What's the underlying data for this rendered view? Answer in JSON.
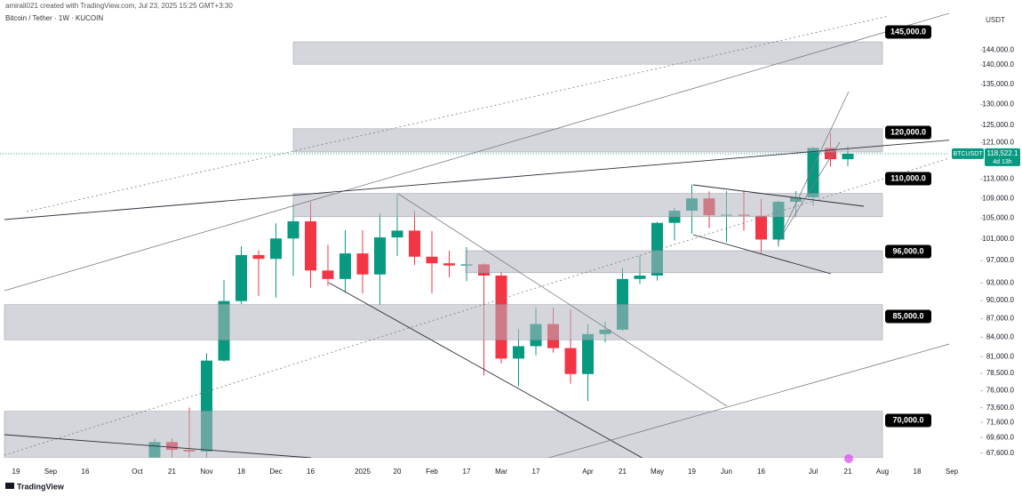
{
  "chart_data": {
    "type": "candlestick",
    "credit": "amirali021 created with TradingView.com, Jul 23, 2025 15:25 GMT+3:30",
    "title": "Bitcoin / Tether · 1W · KUCOIN",
    "currency": "USDT",
    "watermark": "TradingView",
    "log_scale": true,
    "grid": false,
    "categories": [
      "19",
      null,
      "Sep",
      null,
      "16",
      null,
      null,
      "Oct",
      null,
      "21",
      null,
      "Nov",
      null,
      "18",
      null,
      "Dec",
      null,
      "16",
      null,
      null,
      "2025",
      null,
      "20",
      null,
      "Feb",
      null,
      "17",
      null,
      "Mar",
      null,
      "17",
      null,
      null,
      "Apr",
      null,
      "21",
      null,
      "May",
      null,
      "19",
      null,
      "Jun",
      null,
      "16",
      null,
      null,
      "Jul",
      null,
      "21",
      null,
      "Aug",
      null,
      "18",
      null,
      "Sep"
    ],
    "series": [
      {
        "name": "BTCUSDT",
        "up_color": "#089981",
        "down_color": "#f23645",
        "open": [
          null,
          null,
          null,
          null,
          null,
          null,
          null,
          null,
          62850,
          69000,
          68000,
          67800,
          80400,
          89900,
          98000,
          97300,
          101100,
          104400,
          95200,
          93700,
          98300,
          94500,
          101300,
          102600,
          97700,
          96500,
          96100,
          96300,
          94300,
          80700,
          82600,
          86100,
          82300,
          78400,
          84500,
          85200,
          93700,
          94300,
          104100,
          106500,
          109000,
          105600,
          105700,
          105500,
          100900,
          108300,
          109200,
          119800,
          117300,
          null,
          null,
          null,
          null,
          null,
          null
        ],
        "high": [
          null,
          null,
          null,
          null,
          null,
          null,
          null,
          null,
          69500,
          69500,
          73600,
          81500,
          93500,
          99600,
          98900,
          104000,
          107800,
          108300,
          99900,
          102700,
          102700,
          106000,
          109800,
          106400,
          102500,
          98800,
          99500,
          96500,
          95000,
          85300,
          88800,
          88800,
          88500,
          86100,
          86500,
          95700,
          97900,
          104300,
          107100,
          111900,
          110400,
          110500,
          110600,
          108900,
          108500,
          110500,
          120000,
          123200,
          120200,
          null,
          null,
          null,
          null,
          null,
          null
        ],
        "low": [
          null,
          null,
          null,
          null,
          null,
          null,
          null,
          null,
          62400,
          65100,
          66800,
          66800,
          80200,
          89400,
          90800,
          90500,
          94200,
          92200,
          92500,
          91300,
          91200,
          89300,
          97800,
          96200,
          91200,
          94000,
          93300,
          78200,
          80000,
          76600,
          81200,
          81600,
          77000,
          74500,
          83200,
          85000,
          92800,
          93400,
          100700,
          102000,
          103100,
          100400,
          102600,
          98200,
          99600,
          105200,
          107500,
          115700,
          115800,
          null,
          null,
          null,
          null,
          null,
          null
        ],
        "close": [
          null,
          null,
          null,
          null,
          null,
          null,
          null,
          null,
          69000,
          68000,
          67800,
          80400,
          89900,
          98000,
          97300,
          101100,
          104400,
          95200,
          93700,
          98300,
          94500,
          101300,
          102600,
          97700,
          96500,
          96100,
          96300,
          94300,
          80700,
          82600,
          86100,
          82300,
          78400,
          84500,
          85200,
          93700,
          94300,
          104100,
          106500,
          109000,
          105600,
          105700,
          105500,
          100900,
          108300,
          109200,
          119800,
          117300,
          118522.1,
          null,
          null,
          null,
          null,
          null,
          null
        ],
        "last_value_label": "118,522.1",
        "countdown": "4d 13h"
      }
    ],
    "zones": [
      {
        "low": 140200,
        "high": 146200,
        "label": {
          "value": 145000,
          "label": "145,000.0"
        }
      },
      {
        "low": 118900,
        "high": 124200,
        "label": {
          "value": 120000,
          "label": "120,000.0"
        }
      },
      {
        "low": 105300,
        "high": 110000,
        "label": {
          "value": 110000,
          "label": "110,000.0"
        }
      },
      {
        "low": 94800,
        "high": 98800,
        "label": {
          "value": 96000,
          "label": "96,000.0"
        }
      },
      {
        "low": 83600,
        "high": 89300,
        "label": {
          "value": 85000,
          "label": "85,000.0"
        }
      },
      {
        "low": 67000,
        "high": 73100,
        "label": {
          "value": 70000,
          "label": "70,000.0"
        }
      }
    ],
    "ylim": [
      67000,
      155000
    ],
    "yticks": [
      {
        "value": 144000,
        "label": "144,000.0"
      },
      {
        "value": 140000,
        "label": "140,000.0"
      },
      {
        "value": 135000,
        "label": "135,000.0"
      },
      {
        "value": 130000,
        "label": "130,000.0"
      },
      {
        "value": 125000,
        "label": "125,000.0"
      },
      {
        "value": 121000,
        "label": "121,000.0"
      },
      {
        "value": 113000,
        "label": "113,000.0"
      },
      {
        "value": 109000,
        "label": "109,000.0"
      },
      {
        "value": 105000,
        "label": "105,000.0"
      },
      {
        "value": 101000,
        "label": "101,000.0"
      },
      {
        "value": 97000,
        "label": "97,000.0"
      },
      {
        "value": 93000,
        "label": "93,000.0"
      },
      {
        "value": 90000,
        "label": "90,000.0"
      },
      {
        "value": 87000,
        "label": "87,000.0"
      },
      {
        "value": 84000,
        "label": "84,000.0"
      },
      {
        "value": 81000,
        "label": "81,000.0"
      },
      {
        "value": 78500,
        "label": "78,500.0"
      },
      {
        "value": 76000,
        "label": "76,000.0"
      },
      {
        "value": 73600,
        "label": "73,600.0"
      },
      {
        "value": 71600,
        "label": "71,600.0"
      },
      {
        "value": 69600,
        "label": "69,600.0"
      },
      {
        "value": 67600,
        "label": "67,600.0"
      }
    ]
  }
}
